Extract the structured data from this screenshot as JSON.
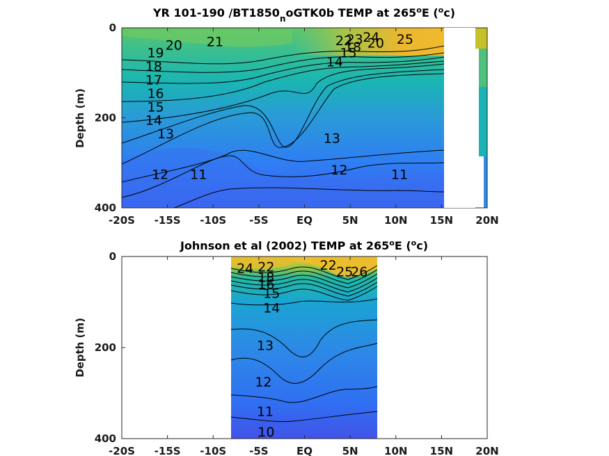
{
  "chart_data": [
    {
      "type": "contour",
      "title": "YR 101-190 /BT1850",
      "title_subscript": "n",
      "title_rest": "oGTK0b TEMP at 265",
      "title_sup": "o",
      "title_unit_1": "E (",
      "title_unit_sup": "o",
      "title_unit_2": "c)",
      "ylabel": "Depth (m)",
      "x_ticks": [
        "-20S",
        "-15S",
        "-10S",
        "-5S",
        "EQ",
        "5N",
        "10N",
        "15N",
        "20N"
      ],
      "x_tick_values": [
        -20,
        -15,
        -10,
        -5,
        0,
        5,
        10,
        15,
        20
      ],
      "y_ticks": [
        "0",
        "200",
        "400"
      ],
      "y_tick_values": [
        0,
        200,
        400
      ],
      "xlim": [
        -20,
        20
      ],
      "ylim": [
        400,
        0
      ],
      "contour_labels": [
        {
          "text": "25",
          "x": 11,
          "depth": 25
        },
        {
          "text": "24",
          "x": 7.3,
          "depth": 20
        },
        {
          "text": "23",
          "x": 5.5,
          "depth": 25
        },
        {
          "text": "22",
          "x": 4.3,
          "depth": 28
        },
        {
          "text": "21",
          "x": -9.8,
          "depth": 30
        },
        {
          "text": "20",
          "x": -14.3,
          "depth": 38
        },
        {
          "text": "20",
          "x": 7.8,
          "depth": 33
        },
        {
          "text": "19",
          "x": -16.3,
          "depth": 55
        },
        {
          "text": "18",
          "x": -16.5,
          "depth": 85
        },
        {
          "text": "18",
          "x": 5.3,
          "depth": 42
        },
        {
          "text": "17",
          "x": -16.5,
          "depth": 115
        },
        {
          "text": "16",
          "x": -16.3,
          "depth": 145
        },
        {
          "text": "15",
          "x": -16.3,
          "depth": 175
        },
        {
          "text": "15",
          "x": 4.8,
          "depth": 55
        },
        {
          "text": "14",
          "x": -16.5,
          "depth": 205
        },
        {
          "text": "14",
          "x": 3.3,
          "depth": 75
        },
        {
          "text": "13",
          "x": -15.2,
          "depth": 235
        },
        {
          "text": "13",
          "x": 3,
          "depth": 245
        },
        {
          "text": "12",
          "x": -15.8,
          "depth": 325
        },
        {
          "text": "12",
          "x": 3.8,
          "depth": 315
        },
        {
          "text": "11",
          "x": -11.6,
          "depth": 325
        },
        {
          "text": "11",
          "x": 10.4,
          "depth": 325
        }
      ]
    },
    {
      "type": "contour",
      "title": "Johnson et al (2002) TEMP at 265",
      "title_sup": "o",
      "title_unit_1": "E (",
      "title_unit_sup": "o",
      "title_unit_2": "c)",
      "ylabel": "Depth (m)",
      "x_ticks": [
        "-20S",
        "-15S",
        "-10S",
        "-5S",
        "EQ",
        "5N",
        "10N",
        "15N",
        "20N"
      ],
      "x_tick_values": [
        -20,
        -15,
        -10,
        -5,
        0,
        5,
        10,
        15,
        20
      ],
      "y_ticks": [
        "0",
        "200",
        "400"
      ],
      "y_tick_values": [
        0,
        200,
        400
      ],
      "xlim": [
        -20,
        20
      ],
      "ylim": [
        400,
        0
      ],
      "data_extent_x": [
        -8,
        8
      ],
      "contour_labels": [
        {
          "text": "24",
          "x": -6.5,
          "depth": 25
        },
        {
          "text": "22",
          "x": -4.2,
          "depth": 22
        },
        {
          "text": "18",
          "x": -4.2,
          "depth": 45
        },
        {
          "text": "16",
          "x": -4.2,
          "depth": 60
        },
        {
          "text": "15",
          "x": -3.6,
          "depth": 80
        },
        {
          "text": "14",
          "x": -3.6,
          "depth": 112
        },
        {
          "text": "22",
          "x": 2.6,
          "depth": 18
        },
        {
          "text": "25",
          "x": 4.4,
          "depth": 33
        },
        {
          "text": "26",
          "x": 6,
          "depth": 33
        },
        {
          "text": "13",
          "x": -4.3,
          "depth": 195
        },
        {
          "text": "12",
          "x": -4.5,
          "depth": 275
        },
        {
          "text": "11",
          "x": -4.3,
          "depth": 340
        },
        {
          "text": "10",
          "x": -4.2,
          "depth": 385
        }
      ]
    }
  ]
}
